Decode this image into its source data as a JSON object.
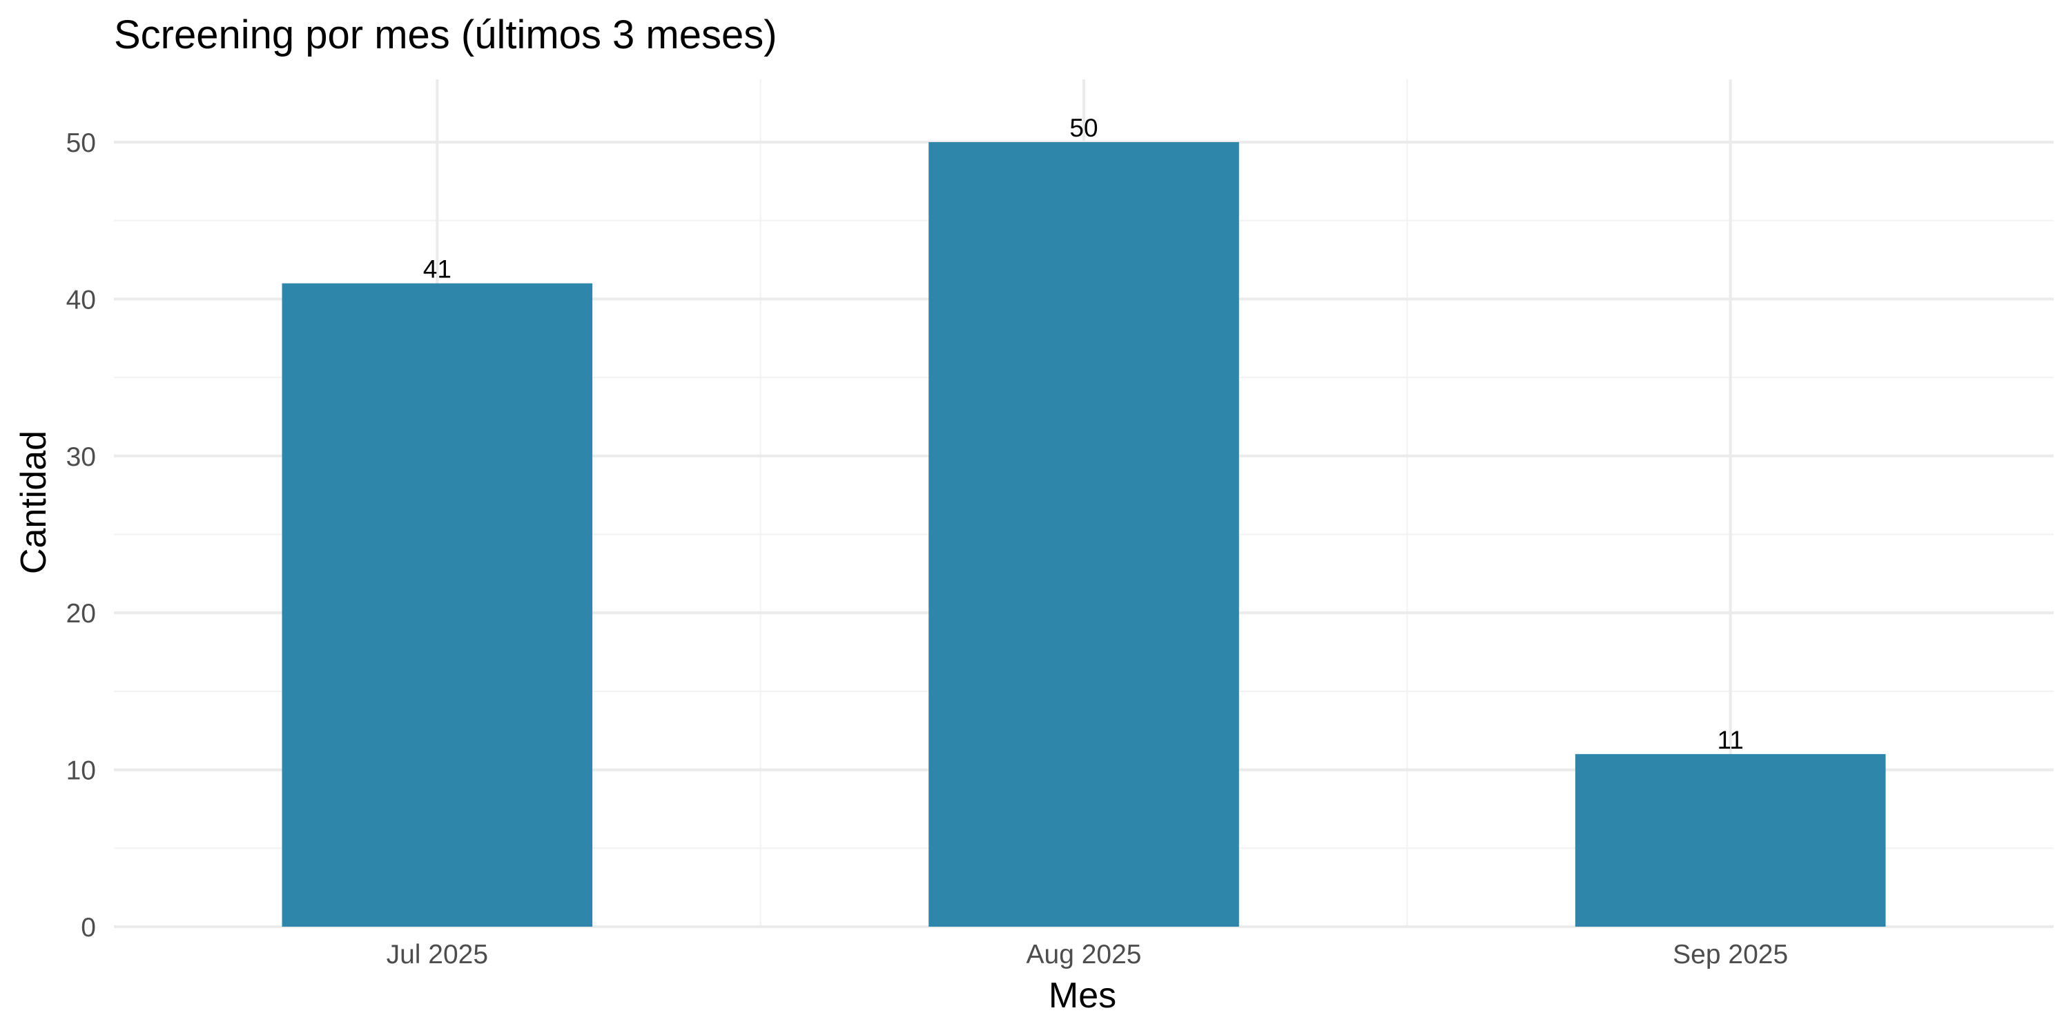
{
  "chart_data": {
    "type": "bar",
    "title": "Screening por mes (últimos 3 meses)",
    "xlabel": "Mes",
    "ylabel": "Cantidad",
    "categories": [
      "Jul 2025",
      "Aug 2025",
      "Sep 2025"
    ],
    "values": [
      41,
      50,
      11
    ],
    "value_labels": [
      "41",
      "50",
      "11"
    ],
    "ylim": [
      0,
      54
    ],
    "y_ticks": [
      0,
      10,
      20,
      30,
      40,
      50
    ],
    "y_tick_labels": [
      "0",
      "10",
      "20",
      "30",
      "40",
      "50"
    ],
    "y_minor_ticks": [
      5,
      15,
      25,
      35,
      45
    ],
    "grid": true,
    "legend": "none",
    "bar_color": "#2e86ab",
    "background": "#ffffff"
  }
}
